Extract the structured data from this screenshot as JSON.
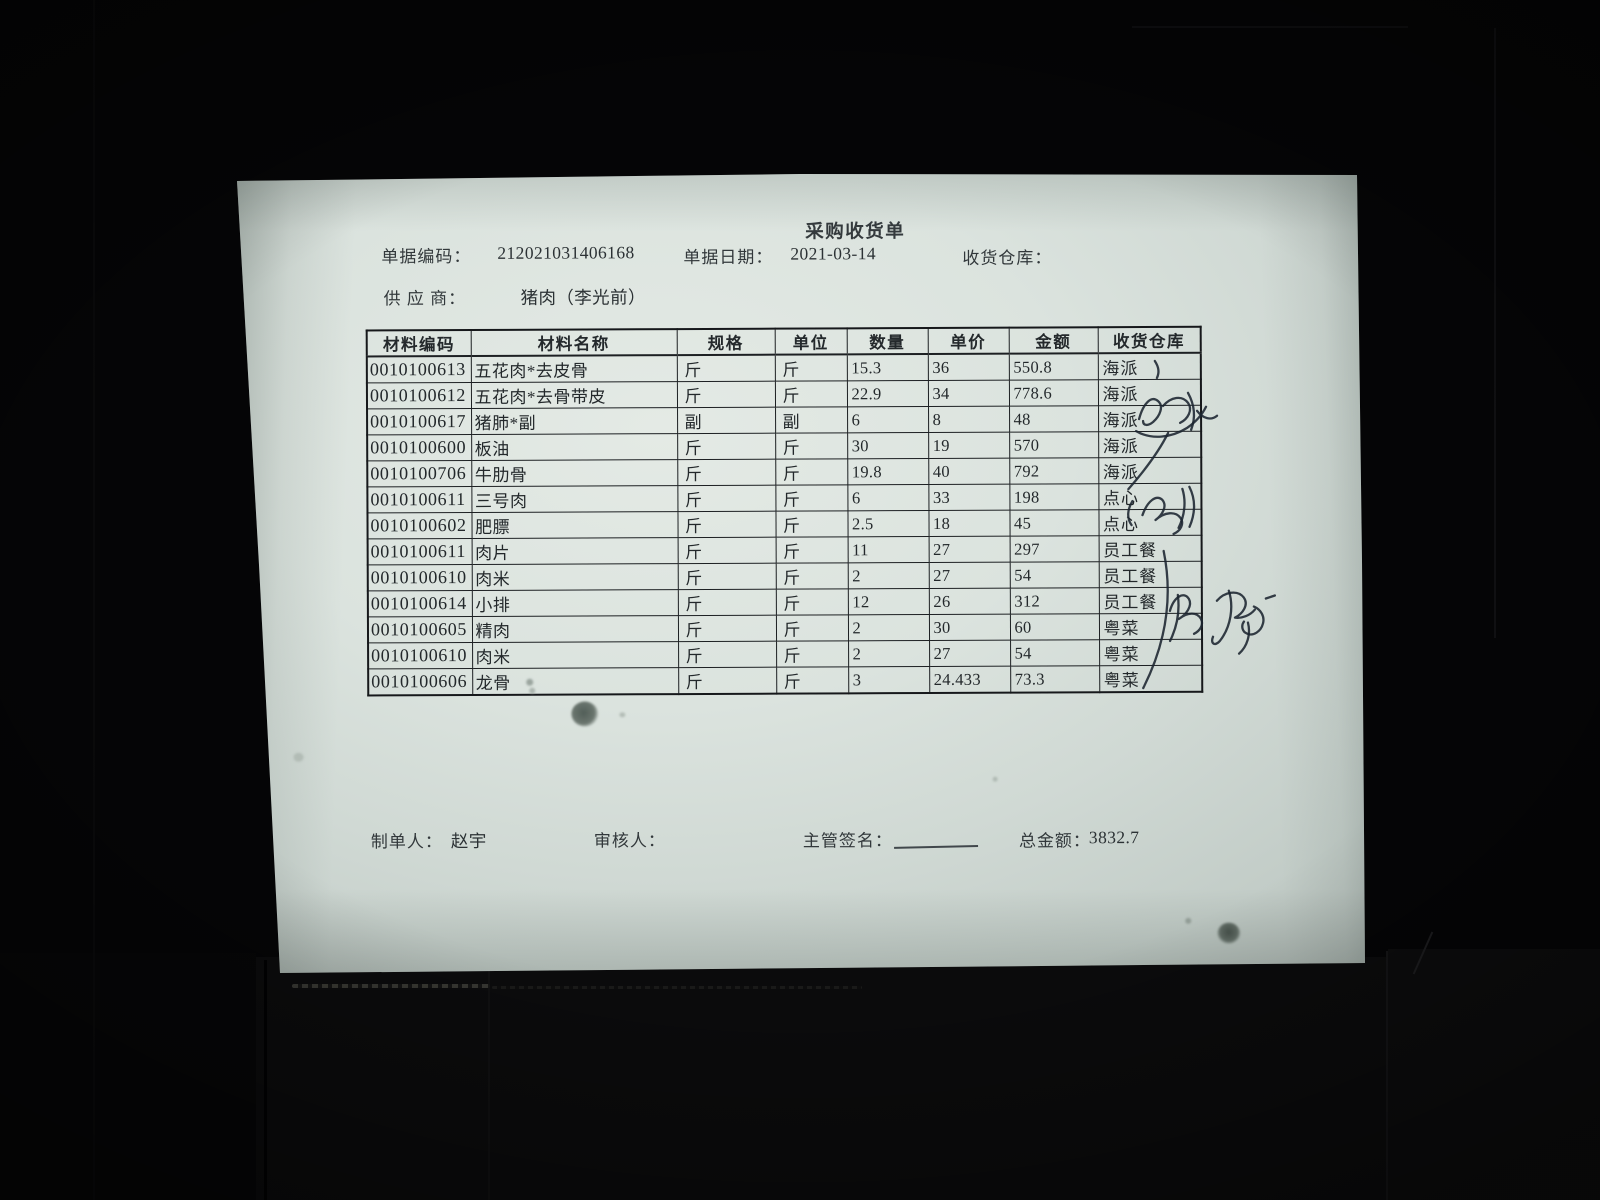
{
  "photo": {
    "background_color": "#050506",
    "paper_color": "#dbe3de",
    "ink_color": "#1b2430",
    "text_color": "#2b3134"
  },
  "header": {
    "title": "采购收货单",
    "doc_no_label": "单据编码：",
    "doc_no": "212021031406168",
    "date_label": "单据日期：",
    "date": "2021-03-14",
    "warehouse_label": "收货仓库：",
    "warehouse": "",
    "supplier_label": "供 应 商：",
    "supplier": "猪肉（李光前）"
  },
  "table": {
    "headers": [
      "材料编码",
      "材料名称",
      "规格",
      "单位",
      "数量",
      "单价",
      "金额",
      "收货仓库"
    ],
    "rows": [
      [
        "0010100613",
        "五花肉*去皮骨",
        "斤",
        "斤",
        "15.3",
        "36",
        "550.8",
        "海派"
      ],
      [
        "0010100612",
        "五花肉*去骨带皮",
        "斤",
        "斤",
        "22.9",
        "34",
        "778.6",
        "海派"
      ],
      [
        "0010100617",
        "猪肺*副",
        "副",
        "副",
        "6",
        "8",
        "48",
        "海派"
      ],
      [
        "0010100600",
        "板油",
        "斤",
        "斤",
        "30",
        "19",
        "570",
        "海派"
      ],
      [
        "0010100706",
        "牛肋骨",
        "斤",
        "斤",
        "19.8",
        "40",
        "792",
        "海派"
      ],
      [
        "0010100611",
        "三号肉",
        "斤",
        "斤",
        "6",
        "33",
        "198",
        "点心"
      ],
      [
        "0010100602",
        "肥膘",
        "斤",
        "斤",
        "2.5",
        "18",
        "45",
        "点心"
      ],
      [
        "0010100611",
        "肉片",
        "斤",
        "斤",
        "11",
        "27",
        "297",
        "员工餐"
      ],
      [
        "0010100610",
        "肉米",
        "斤",
        "斤",
        "2",
        "27",
        "54",
        "员工餐"
      ],
      [
        "0010100614",
        "小排",
        "斤",
        "斤",
        "12",
        "26",
        "312",
        "员工餐"
      ],
      [
        "0010100605",
        "精肉",
        "斤",
        "斤",
        "2",
        "30",
        "60",
        "粤菜"
      ],
      [
        "0010100610",
        "肉米",
        "斤",
        "斤",
        "2",
        "27",
        "54",
        "粤菜"
      ],
      [
        "0010100606",
        "龙骨",
        "斤",
        "斤",
        "3",
        "24.433",
        "73.3",
        "粤菜"
      ]
    ]
  },
  "footer": {
    "preparer_label": "制单人：",
    "preparer": "赵宇",
    "auditor_label": "审核人：",
    "auditor": "",
    "supervisor_sign_label": "主管签名：",
    "total_label": "总金额：",
    "total": "3832.7"
  }
}
